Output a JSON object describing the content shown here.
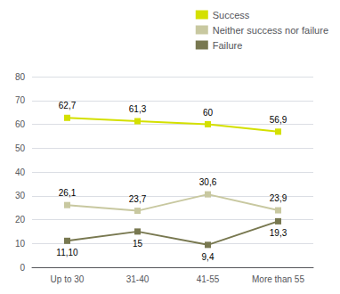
{
  "chart_data": {
    "type": "line",
    "categories": [
      "Up to 30",
      "31-40",
      "41-55",
      "More than 55"
    ],
    "series": [
      {
        "name": "Success",
        "color": "#d4e000",
        "values": [
          62.7,
          61.3,
          60,
          56.9
        ],
        "value_labels": [
          "62,7",
          "61,3",
          "60",
          "56,9"
        ]
      },
      {
        "name": "Neither success nor failure",
        "color": "#c8c8a0",
        "values": [
          26.1,
          23.7,
          30.6,
          23.9
        ],
        "value_labels": [
          "26,1",
          "23,7",
          "30,6",
          "23,9"
        ]
      },
      {
        "name": "Failure",
        "color": "#787850",
        "values": [
          11.1,
          15,
          9.4,
          19.3
        ],
        "value_labels": [
          "11,10",
          "15",
          "9,4",
          "19,3"
        ]
      }
    ],
    "ylim": [
      0,
      80
    ],
    "yticks": [
      0,
      10,
      20,
      30,
      40,
      50,
      60,
      70,
      80
    ],
    "grid": true,
    "legend": "upper right",
    "marker": "square",
    "data_labels": true
  }
}
